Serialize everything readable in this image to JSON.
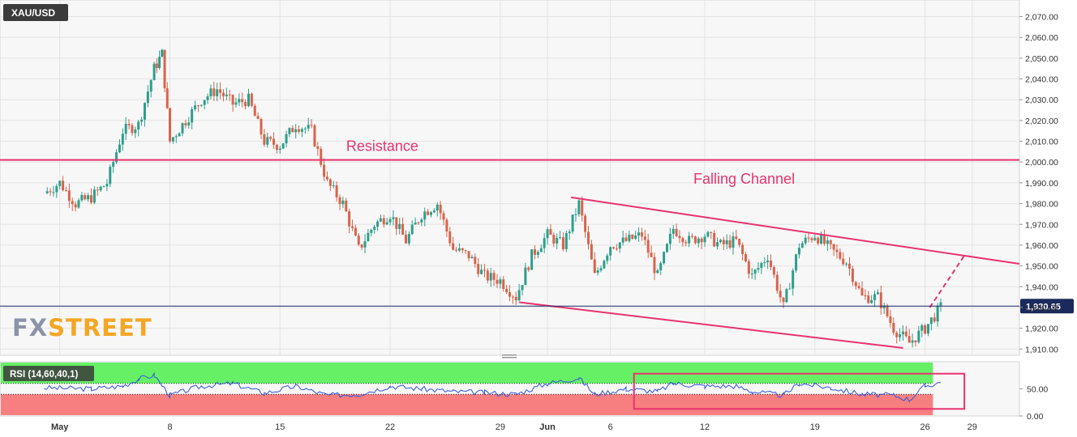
{
  "symbol": "XAU/USD",
  "brand": {
    "part1": "FX",
    "part2": "STREET"
  },
  "current_price_label": "1,930.65",
  "colors": {
    "up": "#2e9e8a",
    "down": "#d9644b",
    "annotation": "#e8336d",
    "rsi_line": "#3355dd",
    "rsi_over": "#66f066",
    "rsi_under": "#f77f7f",
    "price_line": "#1a2a66"
  },
  "chart_data": [
    {
      "type": "candlestick",
      "title": "XAU/USD",
      "timeframe": "hourly",
      "y_ticks": [
        "2,070.00",
        "2,060.00",
        "2,050.00",
        "2,040.00",
        "2,030.00",
        "2,020.00",
        "2,010.00",
        "2,000.00",
        "1,990.00",
        "1,980.00",
        "1,970.00",
        "1,960.00",
        "1,950.00",
        "1,940.00",
        "1,930.00",
        "1,920.00",
        "1,910.00"
      ],
      "ylim": [
        1907,
        2078
      ],
      "x_ticks": [
        "May",
        "8",
        "15",
        "22",
        "29",
        "Jun",
        "6",
        "12",
        "19",
        "26",
        "29"
      ],
      "x_tick_days": [
        1,
        8,
        15,
        22,
        29,
        32,
        36,
        42,
        49,
        56,
        59
      ],
      "xlim": [
        -2.8,
        62
      ],
      "approx_closes": [
        {
          "day": 0,
          "price": 1985
        },
        {
          "day": 1,
          "price": 1990
        },
        {
          "day": 2,
          "price": 1980
        },
        {
          "day": 3,
          "price": 1983
        },
        {
          "day": 4,
          "price": 1990
        },
        {
          "day": 5,
          "price": 2015
        },
        {
          "day": 6,
          "price": 2018
        },
        {
          "day": 7,
          "price": 2045
        },
        {
          "day": 7.5,
          "price": 2052
        },
        {
          "day": 8,
          "price": 2010
        },
        {
          "day": 9,
          "price": 2020
        },
        {
          "day": 10,
          "price": 2030
        },
        {
          "day": 11,
          "price": 2035
        },
        {
          "day": 12,
          "price": 2028
        },
        {
          "day": 13,
          "price": 2030
        },
        {
          "day": 14,
          "price": 2010
        },
        {
          "day": 15,
          "price": 2008
        },
        {
          "day": 16,
          "price": 2018
        },
        {
          "day": 17,
          "price": 2015
        },
        {
          "day": 18,
          "price": 1990
        },
        {
          "day": 19,
          "price": 1980
        },
        {
          "day": 20,
          "price": 1958
        },
        {
          "day": 21,
          "price": 1970
        },
        {
          "day": 22,
          "price": 1975
        },
        {
          "day": 23,
          "price": 1962
        },
        {
          "day": 24,
          "price": 1975
        },
        {
          "day": 25,
          "price": 1980
        },
        {
          "day": 26,
          "price": 1958
        },
        {
          "day": 27,
          "price": 1955
        },
        {
          "day": 28,
          "price": 1945
        },
        {
          "day": 29,
          "price": 1943
        },
        {
          "day": 30,
          "price": 1935
        },
        {
          "day": 31,
          "price": 1955
        },
        {
          "day": 32,
          "price": 1965
        },
        {
          "day": 33,
          "price": 1960
        },
        {
          "day": 34,
          "price": 1980
        },
        {
          "day": 35,
          "price": 1945
        },
        {
          "day": 36,
          "price": 1960
        },
        {
          "day": 37,
          "price": 1962
        },
        {
          "day": 38,
          "price": 1965
        },
        {
          "day": 39,
          "price": 1945
        },
        {
          "day": 40,
          "price": 1968
        },
        {
          "day": 41,
          "price": 1962
        },
        {
          "day": 42,
          "price": 1965
        },
        {
          "day": 43,
          "price": 1960
        },
        {
          "day": 44,
          "price": 1962
        },
        {
          "day": 45,
          "price": 1945
        },
        {
          "day": 46,
          "price": 1955
        },
        {
          "day": 47,
          "price": 1930
        },
        {
          "day": 48,
          "price": 1960
        },
        {
          "day": 49,
          "price": 1965
        },
        {
          "day": 50,
          "price": 1958
        },
        {
          "day": 51,
          "price": 1952
        },
        {
          "day": 52,
          "price": 1935
        },
        {
          "day": 53,
          "price": 1935
        },
        {
          "day": 54,
          "price": 1920
        },
        {
          "day": 55,
          "price": 1913
        },
        {
          "day": 56,
          "price": 1920
        },
        {
          "day": 57,
          "price": 1930
        }
      ],
      "annotations": [
        {
          "text": "Resistance",
          "type": "horizontal",
          "price": 2001
        },
        {
          "text": "Falling Channel",
          "type": "channel",
          "upper": [
            {
              "day": 33.5,
              "price": 1983
            },
            {
              "day": 62,
              "price": 1951
            }
          ],
          "lower": [
            {
              "day": 30.2,
              "price": 1932.5
            },
            {
              "day": 54.6,
              "price": 1910.5
            }
          ],
          "projection": [
            {
              "day": 56.3,
              "price": 1930
            },
            {
              "day": 58.5,
              "price": 1955
            }
          ]
        }
      ],
      "current_price": 1930.65
    },
    {
      "type": "line",
      "title": "RSI (14,60,40,1)",
      "y_ticks": [
        "50.00",
        "0.00"
      ],
      "ylim": [
        0,
        100
      ],
      "levels": [
        60,
        40
      ],
      "highlight_box": {
        "from_day": 37.5,
        "to_day": 58.5,
        "price_range": [
          13,
          78
        ]
      },
      "approx_values": [
        {
          "day": 0,
          "price": 52
        },
        {
          "day": 3,
          "price": 50
        },
        {
          "day": 5,
          "price": 55
        },
        {
          "day": 6,
          "price": 68
        },
        {
          "day": 7,
          "price": 75
        },
        {
          "day": 8,
          "price": 38
        },
        {
          "day": 10,
          "price": 55
        },
        {
          "day": 12,
          "price": 60
        },
        {
          "day": 14,
          "price": 42
        },
        {
          "day": 16,
          "price": 55
        },
        {
          "day": 18,
          "price": 38
        },
        {
          "day": 20,
          "price": 40
        },
        {
          "day": 22,
          "price": 55
        },
        {
          "day": 24,
          "price": 50
        },
        {
          "day": 26,
          "price": 45
        },
        {
          "day": 28,
          "price": 43
        },
        {
          "day": 30,
          "price": 40
        },
        {
          "day": 32,
          "price": 60
        },
        {
          "day": 34,
          "price": 70
        },
        {
          "day": 35,
          "price": 40
        },
        {
          "day": 37,
          "price": 50
        },
        {
          "day": 39,
          "price": 45
        },
        {
          "day": 40,
          "price": 60
        },
        {
          "day": 42,
          "price": 55
        },
        {
          "day": 44,
          "price": 55
        },
        {
          "day": 45,
          "price": 45
        },
        {
          "day": 47,
          "price": 38
        },
        {
          "day": 48,
          "price": 60
        },
        {
          "day": 50,
          "price": 52
        },
        {
          "day": 52,
          "price": 40
        },
        {
          "day": 54,
          "price": 38
        },
        {
          "day": 55,
          "price": 30
        },
        {
          "day": 56,
          "price": 55
        },
        {
          "day": 57,
          "price": 62
        }
      ]
    }
  ]
}
